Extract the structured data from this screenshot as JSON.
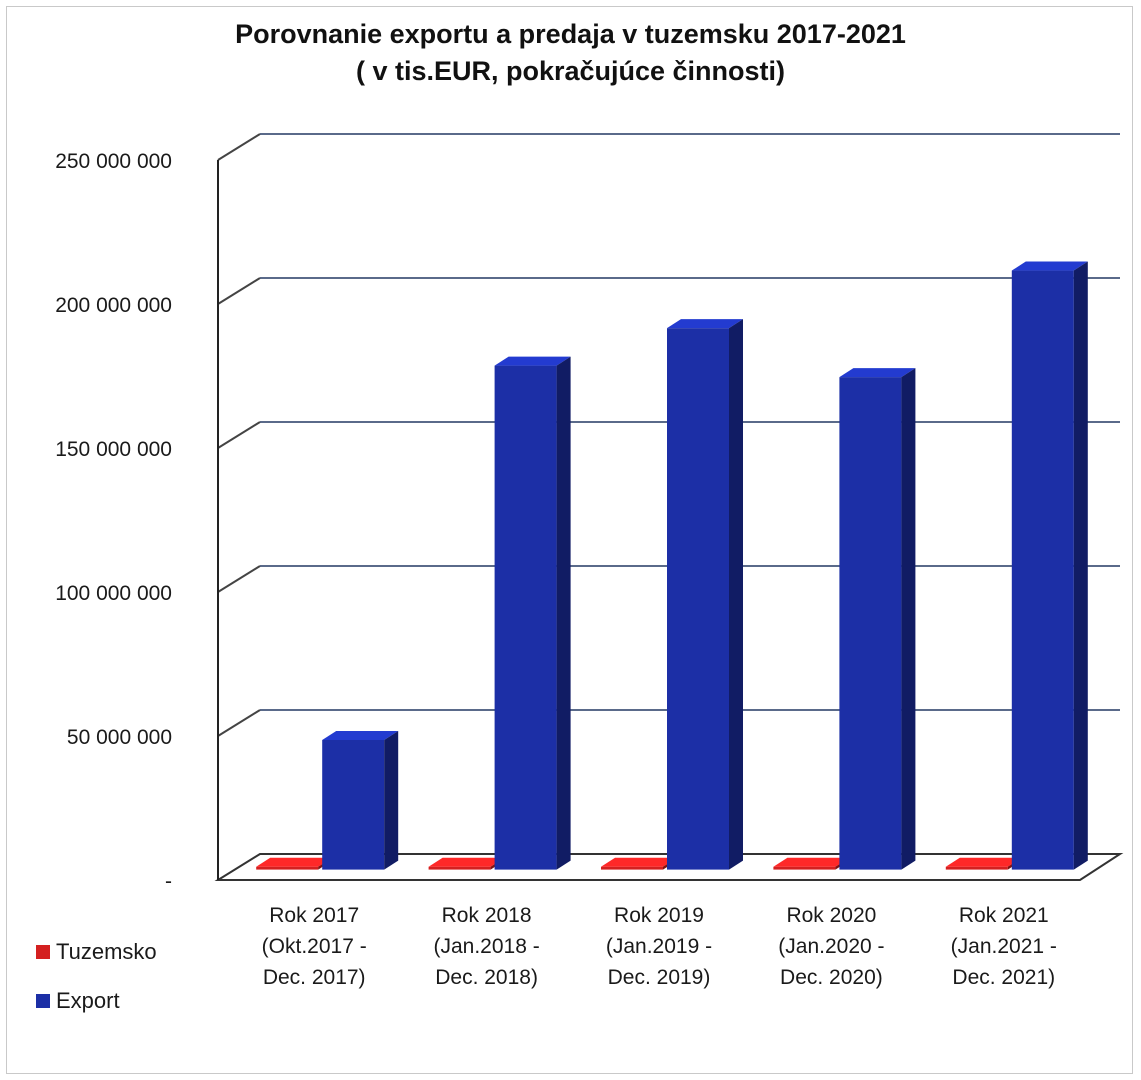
{
  "chart_data": {
    "type": "bar",
    "title": "Porovnanie exportu a predaja v tuzemsku 2017-2021",
    "subtitle": "( v tis.EUR, pokračujúce činnosti)",
    "categories": [
      [
        "Rok 2017",
        "(Okt.2017  -",
        "Dec. 2017)"
      ],
      [
        "Rok 2018",
        "(Jan.2018  -",
        "Dec. 2018)"
      ],
      [
        "Rok 2019",
        "(Jan.2019  -",
        "Dec. 2019)"
      ],
      [
        "Rok 2020",
        "(Jan.2020  -",
        "Dec. 2020)"
      ],
      [
        "Rok 2021",
        "(Jan.2021  -",
        "Dec. 2021)"
      ]
    ],
    "series": [
      {
        "name": "Tuzemsko",
        "color": "#d42020",
        "values": [
          1000000,
          1000000,
          1000000,
          1000000,
          1000000
        ]
      },
      {
        "name": "Export",
        "color": "#1c2fa6",
        "values": [
          45000000,
          175000000,
          188000000,
          171000000,
          208000000
        ]
      }
    ],
    "ylim": [
      0,
      250000000
    ],
    "yticks": [
      0,
      50000000,
      100000000,
      150000000,
      200000000,
      250000000
    ],
    "ytick_labels": [
      "-",
      "50 000 000",
      "100 000 000",
      "150 000 000",
      "200 000 000",
      "250 000 000"
    ],
    "legend_position": "left",
    "grid": true,
    "three_d": true
  }
}
